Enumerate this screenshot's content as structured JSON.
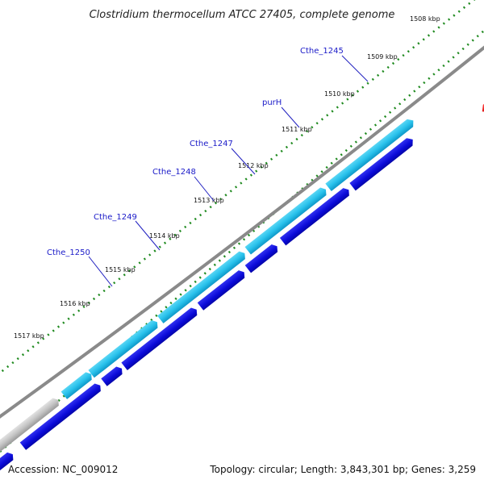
{
  "title": "Clostridium thermocellum ATCC 27405, complete genome",
  "accession": "Accession: NC_009012",
  "summary": "Topology: circular; Length: 3,843,301 bp; Genes: 3,259",
  "colors": {
    "cds_forward_light": "#29c2ec",
    "cds_forward_dark": "#0e98c8",
    "cds_reverse": "#0a0ad8",
    "gene_grey": "#c0c0c0",
    "rrna": "#ee1111",
    "tick_green": "#1f8a1f",
    "backbone": "#8a8a8a",
    "label_blue": "#1a1ac8"
  },
  "scale_labels": [
    "1508 kbp",
    "1509 kbp",
    "1510 kbp",
    "1511 kbp",
    "1512 kbp",
    "1513 kbp",
    "1514 kbp",
    "1515 kbp",
    "1516 kbp",
    "1517 kbp"
  ],
  "gene_labels": [
    "Cthe_1245",
    "purH",
    "Cthe_1247",
    "Cthe_1248",
    "Cthe_1249",
    "Cthe_1250"
  ]
}
